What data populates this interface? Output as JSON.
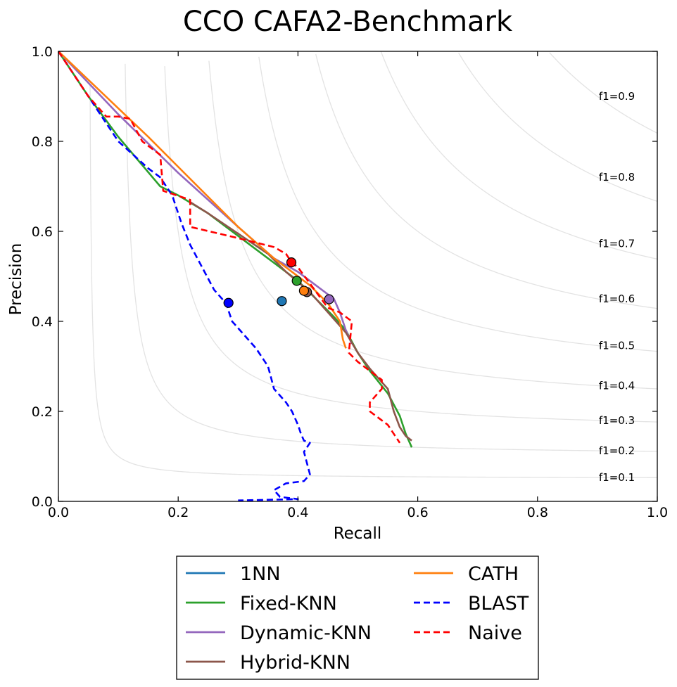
{
  "chart_data": {
    "type": "line",
    "title": "CCO CAFA2-Benchmark",
    "xlabel": "Recall",
    "ylabel": "Precision",
    "xlim": [
      0.0,
      1.0
    ],
    "ylim": [
      0.0,
      1.0
    ],
    "xticks": [
      "0.0",
      "0.2",
      "0.4",
      "0.6",
      "0.8",
      "1.0"
    ],
    "yticks": [
      "0.0",
      "0.2",
      "0.4",
      "0.6",
      "0.8",
      "1.0"
    ],
    "grid": false,
    "legend_position": "below-center",
    "iso_f1": [
      {
        "label": "f1=0.1",
        "value": 0.1
      },
      {
        "label": "f1=0.2",
        "value": 0.2
      },
      {
        "label": "f1=0.3",
        "value": 0.3
      },
      {
        "label": "f1=0.4",
        "value": 0.4
      },
      {
        "label": "f1=0.5",
        "value": 0.5
      },
      {
        "label": "f1=0.6",
        "value": 0.6
      },
      {
        "label": "f1=0.7",
        "value": 0.7
      },
      {
        "label": "f1=0.8",
        "value": 0.8
      },
      {
        "label": "f1=0.9",
        "value": 0.9
      }
    ],
    "series": [
      {
        "name": "1NN",
        "color": "#1f77b4",
        "style": "solid",
        "x": [],
        "y": [],
        "max_point": {
          "x": 0.373,
          "y": 0.445
        }
      },
      {
        "name": "Fixed-KNN",
        "color": "#2ca02c",
        "style": "solid",
        "x": [
          0.0,
          0.05,
          0.1,
          0.17,
          0.2,
          0.25,
          0.3,
          0.35,
          0.4,
          0.43,
          0.46,
          0.48,
          0.5,
          0.52,
          0.55,
          0.57,
          0.58,
          0.59
        ],
        "y": [
          1.0,
          0.9,
          0.81,
          0.7,
          0.68,
          0.64,
          0.59,
          0.54,
          0.49,
          0.45,
          0.41,
          0.38,
          0.33,
          0.29,
          0.24,
          0.19,
          0.15,
          0.12
        ],
        "max_point": {
          "x": 0.398,
          "y": 0.49
        }
      },
      {
        "name": "Dynamic-KNN",
        "color": "#9467bd",
        "style": "solid",
        "x": [
          0.0,
          0.1,
          0.2,
          0.3,
          0.36,
          0.4,
          0.43,
          0.46,
          0.47,
          0.48,
          0.49
        ],
        "y": [
          1.0,
          0.86,
          0.73,
          0.61,
          0.54,
          0.51,
          0.48,
          0.45,
          0.42,
          0.38,
          0.35
        ],
        "max_point": {
          "x": 0.452,
          "y": 0.449
        }
      },
      {
        "name": "Hybrid-KNN",
        "color": "#8c564b",
        "style": "solid",
        "x": [
          0.22,
          0.25,
          0.3,
          0.35,
          0.38,
          0.42,
          0.45,
          0.48,
          0.5,
          0.52,
          0.55,
          0.56,
          0.57,
          0.58,
          0.59
        ],
        "y": [
          0.665,
          0.64,
          0.595,
          0.55,
          0.51,
          0.465,
          0.42,
          0.375,
          0.33,
          0.295,
          0.25,
          0.2,
          0.165,
          0.145,
          0.135
        ],
        "max_point": {
          "x": 0.415,
          "y": 0.465
        }
      },
      {
        "name": "CATH",
        "color": "#ff7f0e",
        "style": "solid",
        "x": [
          0.0,
          0.15,
          0.3,
          0.36,
          0.38,
          0.42,
          0.45,
          0.47,
          0.475,
          0.48
        ],
        "y": [
          1.0,
          0.81,
          0.61,
          0.54,
          0.52,
          0.48,
          0.44,
          0.4,
          0.36,
          0.34
        ],
        "max_point": {
          "x": 0.41,
          "y": 0.468
        }
      },
      {
        "name": "BLAST",
        "color": "#0000ff",
        "style": "dashed",
        "x": [
          0.0,
          0.05,
          0.1,
          0.15,
          0.17,
          0.19,
          0.205,
          0.22,
          0.24,
          0.26,
          0.28,
          0.29,
          0.31,
          0.33,
          0.35,
          0.36,
          0.38,
          0.39,
          0.4,
          0.405,
          0.41,
          0.42,
          0.41,
          0.42,
          0.41,
          0.38,
          0.36,
          0.37,
          0.4,
          0.3
        ],
        "y": [
          1.0,
          0.9,
          0.8,
          0.74,
          0.72,
          0.68,
          0.62,
          0.57,
          0.52,
          0.47,
          0.44,
          0.4,
          0.37,
          0.34,
          0.3,
          0.25,
          0.22,
          0.2,
          0.17,
          0.15,
          0.135,
          0.13,
          0.11,
          0.06,
          0.045,
          0.04,
          0.025,
          0.01,
          0.005,
          0.002
        ],
        "max_point": {
          "x": 0.284,
          "y": 0.441
        }
      },
      {
        "name": "Naive",
        "color": "#ff0000",
        "style": "dashed",
        "x": [
          0.0,
          0.05,
          0.08,
          0.1,
          0.12,
          0.14,
          0.17,
          0.175,
          0.22,
          0.22,
          0.3,
          0.36,
          0.38,
          0.39,
          0.4,
          0.45,
          0.47,
          0.49,
          0.485,
          0.5,
          0.52,
          0.54,
          0.54,
          0.52,
          0.52,
          0.55,
          0.57
        ],
        "y": [
          1.0,
          0.9,
          0.855,
          0.855,
          0.85,
          0.8,
          0.77,
          0.69,
          0.67,
          0.61,
          0.585,
          0.565,
          0.55,
          0.53,
          0.52,
          0.43,
          0.42,
          0.4,
          0.33,
          0.31,
          0.29,
          0.27,
          0.25,
          0.22,
          0.2,
          0.17,
          0.13
        ],
        "max_point": {
          "x": 0.389,
          "y": 0.531
        }
      }
    ]
  }
}
